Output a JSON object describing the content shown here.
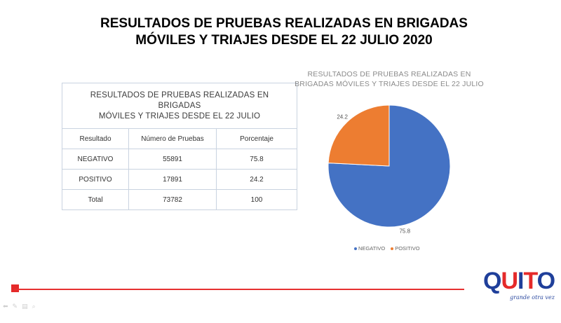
{
  "slide": {
    "title_line1": "RESULTADOS DE PRUEBAS REALIZADAS EN BRIGADAS",
    "title_line2": "MÓVILES Y TRIAJES DESDE EL 22 JULIO 2020"
  },
  "table": {
    "caption_line1": "RESULTADOS  DE PRUEBAS  REALIZADAS  EN BRIGADAS",
    "caption_line2": "MÓVILES Y TRIAJES DESDE EL 22 JULIO",
    "headers": [
      "Resultado",
      "Número de Pruebas",
      "Porcentaje"
    ],
    "rows": [
      [
        "NEGATIVO",
        "55891",
        "75.8"
      ],
      [
        "POSITIVO",
        "17891",
        "24.2"
      ],
      [
        "Total",
        "73782",
        "100"
      ]
    ]
  },
  "chart_data": {
    "type": "pie",
    "title": "RESULTADOS DE PRUEBAS REALIZADAS EN BRIGADAS MÓVILES Y TRIAJES DESDE EL 22 JULIO",
    "title_line1": "RESULTADOS DE PRUEBAS REALIZADAS EN",
    "title_line2": "BRIGADAS MÓVILES Y TRIAJES DESDE EL 22 JULIO",
    "categories": [
      "NEGATIVO",
      "POSITIVO"
    ],
    "values": [
      75.8,
      24.2
    ],
    "data_labels": [
      "75.8",
      "24.2"
    ],
    "colors": [
      "#4472c4",
      "#ed7d31"
    ],
    "legend_position": "bottom"
  },
  "logo": {
    "letters": [
      "Q",
      "U",
      "I",
      "T",
      "O"
    ],
    "letter_colors": [
      "#1f3f9a",
      "#e52a2a",
      "#1f3f9a",
      "#e52a2a",
      "#1f3f9a"
    ],
    "tagline": "grande otra vez"
  },
  "toolbar": {
    "icons": [
      "arrow-left-icon",
      "pen-icon",
      "slides-icon",
      "zoom-icon"
    ]
  }
}
